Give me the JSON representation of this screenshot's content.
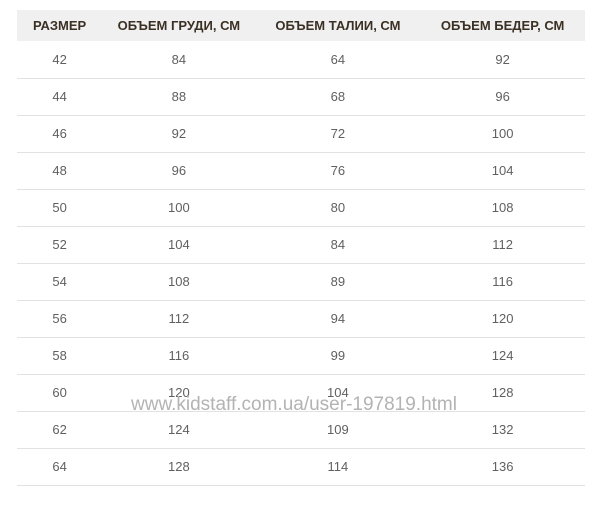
{
  "chart_data": {
    "type": "table",
    "columns": [
      "РАЗМЕР",
      "ОБЪЕМ ГРУДИ, СМ",
      "ОБЪЕМ ТАЛИИ, СМ",
      "ОБЪЕМ БЕДЕР, СМ"
    ],
    "rows": [
      [
        42,
        84,
        64,
        92
      ],
      [
        44,
        88,
        68,
        96
      ],
      [
        46,
        92,
        72,
        100
      ],
      [
        48,
        96,
        76,
        104
      ],
      [
        50,
        100,
        80,
        108
      ],
      [
        52,
        104,
        84,
        112
      ],
      [
        54,
        108,
        89,
        116
      ],
      [
        56,
        112,
        94,
        120
      ],
      [
        58,
        116,
        99,
        124
      ],
      [
        60,
        120,
        104,
        128
      ],
      [
        62,
        124,
        109,
        132
      ],
      [
        64,
        128,
        114,
        136
      ]
    ]
  },
  "watermark": {
    "text": "www.kidstaff.com.ua/user-197819.html"
  },
  "colors": {
    "page_bg": "#ffffff",
    "header_bg": "#f0f0f0",
    "header_text": "#3b3024",
    "cell_text": "#606060",
    "row_border": "#e2e2e2",
    "watermark": "#b3b3b3"
  }
}
